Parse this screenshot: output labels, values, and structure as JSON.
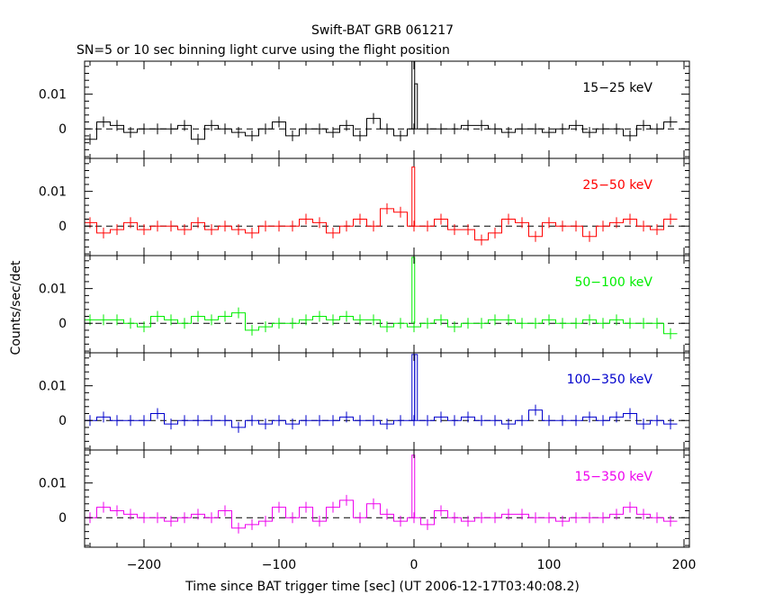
{
  "title": "Swift-BAT GRB 061217",
  "subtitle": "SN=5 or 10 sec binning light curve using the flight position",
  "xlabel": "Time since BAT trigger time [sec] (UT 2006-12-17T03:40:08.2)",
  "ylabel": "Counts/sec/det",
  "chart_data": {
    "type": "line",
    "title": "Swift-BAT GRB 061217",
    "subtitle": "SN=5 or 10 sec binning light curve using the flight position",
    "xlabel": "Time since BAT trigger time [sec] (UT 2006-12-17T03:40:08.2)",
    "ylabel": "Counts/sec/det",
    "xlim": [
      -244,
      204
    ],
    "ylim": [
      -0.0085,
      0.0195
    ],
    "x_ticks": [
      -200,
      -100,
      0,
      100,
      200
    ],
    "x_tick_labels": [
      "−200",
      "−100",
      "0",
      "100",
      "200"
    ],
    "y_ticks": [
      0,
      0.01
    ],
    "y_tick_labels": [
      "0",
      "0.01"
    ],
    "bin_width": 10,
    "panels": [
      {
        "name": "15−25 keV",
        "color": "#000000",
        "x": [
          -240,
          -230,
          -220,
          -210,
          -200,
          -190,
          -180,
          -170,
          -160,
          -150,
          -140,
          -130,
          -120,
          -110,
          -100,
          -90,
          -80,
          -70,
          -60,
          -50,
          -40,
          -30,
          -20,
          -10,
          0,
          10,
          20,
          30,
          40,
          50,
          60,
          70,
          80,
          90,
          100,
          110,
          120,
          130,
          140,
          150,
          160,
          170,
          180,
          190
        ],
        "y": [
          -0.003,
          0.002,
          0.001,
          -0.001,
          0.0,
          0.0,
          0.0,
          0.001,
          -0.003,
          0.001,
          0.0,
          -0.001,
          -0.002,
          0.0,
          0.002,
          -0.002,
          0.0,
          0.0,
          -0.001,
          0.001,
          -0.002,
          0.003,
          0.0,
          -0.002,
          0.0,
          0.0,
          0.0,
          0.0,
          0.001,
          0.001,
          0.0,
          -0.001,
          0.0,
          0.0,
          -0.001,
          0.0,
          0.001,
          -0.001,
          0.0,
          0.0,
          -0.002,
          0.001,
          0.0,
          0.002
        ],
        "spikes": [
          {
            "x": [
              -1.5,
              0.5
            ],
            "y": 0.02
          },
          {
            "x": [
              0.5,
              2.5
            ],
            "y": 0.013
          }
        ]
      },
      {
        "name": "25−50 keV",
        "color": "#ff0000",
        "x": [
          -240,
          -230,
          -220,
          -210,
          -200,
          -190,
          -180,
          -170,
          -160,
          -150,
          -140,
          -130,
          -120,
          -110,
          -100,
          -90,
          -80,
          -70,
          -60,
          -50,
          -40,
          -30,
          -20,
          -10,
          0,
          10,
          20,
          30,
          40,
          50,
          60,
          70,
          80,
          90,
          100,
          110,
          120,
          130,
          140,
          150,
          160,
          170,
          180,
          190
        ],
        "y": [
          0.001,
          -0.002,
          -0.001,
          0.001,
          -0.001,
          0.0,
          0.0,
          -0.001,
          0.001,
          -0.001,
          0.0,
          -0.001,
          -0.002,
          0.0,
          0.0,
          0.0,
          0.002,
          0.001,
          -0.002,
          0.0,
          0.002,
          0.0,
          0.005,
          0.004,
          0.0,
          0.0,
          0.002,
          -0.001,
          -0.001,
          -0.004,
          -0.002,
          0.002,
          0.001,
          -0.003,
          0.001,
          0.0,
          0.0,
          -0.003,
          0.0,
          0.001,
          0.002,
          0.0,
          -0.001,
          0.002
        ],
        "spikes": [
          {
            "x": [
              -1.5,
              0.5
            ],
            "y": 0.017
          }
        ]
      },
      {
        "name": "50−100 keV",
        "color": "#00ee00",
        "x": [
          -240,
          -230,
          -220,
          -210,
          -200,
          -190,
          -180,
          -170,
          -160,
          -150,
          -140,
          -130,
          -120,
          -110,
          -100,
          -90,
          -80,
          -70,
          -60,
          -50,
          -40,
          -30,
          -20,
          -10,
          0,
          10,
          20,
          30,
          40,
          50,
          60,
          70,
          80,
          90,
          100,
          110,
          120,
          130,
          140,
          150,
          160,
          170,
          180,
          190
        ],
        "y": [
          0.001,
          0.001,
          0.001,
          0.0,
          -0.001,
          0.002,
          0.001,
          0.0,
          0.002,
          0.001,
          0.002,
          0.003,
          -0.002,
          -0.001,
          0.0,
          0.0,
          0.001,
          0.002,
          0.001,
          0.002,
          0.001,
          0.001,
          -0.001,
          0.0,
          -0.001,
          0.0,
          0.001,
          -0.001,
          0.0,
          0.0,
          0.001,
          0.001,
          0.0,
          0.0,
          0.001,
          0.0,
          0.0,
          0.001,
          0.0,
          0.001,
          0.0,
          0.0,
          0.0,
          -0.003
        ],
        "spikes": [
          {
            "x": [
              -1.5,
              0.5
            ],
            "y": 0.019
          }
        ]
      },
      {
        "name": "100−350 keV",
        "color": "#0000cc",
        "x": [
          -240,
          -230,
          -220,
          -210,
          -200,
          -190,
          -180,
          -170,
          -160,
          -150,
          -140,
          -130,
          -120,
          -110,
          -100,
          -90,
          -80,
          -70,
          -60,
          -50,
          -40,
          -30,
          -20,
          -10,
          0,
          10,
          20,
          30,
          40,
          50,
          60,
          70,
          80,
          90,
          100,
          110,
          120,
          130,
          140,
          150,
          160,
          170,
          180,
          190
        ],
        "y": [
          0.0,
          0.001,
          0.0,
          0.0,
          0.0,
          0.002,
          -0.001,
          0.0,
          0.0,
          0.0,
          0.0,
          -0.002,
          0.0,
          -0.001,
          0.0,
          -0.001,
          0.0,
          0.0,
          0.0,
          0.001,
          0.0,
          0.0,
          -0.001,
          0.0,
          0.0,
          0.0,
          0.001,
          0.0,
          0.001,
          0.0,
          0.0,
          -0.001,
          0.0,
          0.003,
          0.0,
          0.0,
          0.0,
          0.001,
          0.0,
          0.001,
          0.002,
          -0.001,
          0.0,
          -0.001
        ],
        "spikes": [
          {
            "x": [
              -1.5,
              0.5
            ],
            "y": 0.019
          },
          {
            "x": [
              0.5,
              2.5
            ],
            "y": 0.019
          }
        ]
      },
      {
        "name": "15−350 keV",
        "color": "#ee00ee",
        "x": [
          -240,
          -230,
          -220,
          -210,
          -200,
          -190,
          -180,
          -170,
          -160,
          -150,
          -140,
          -130,
          -120,
          -110,
          -100,
          -90,
          -80,
          -70,
          -60,
          -50,
          -40,
          -30,
          -20,
          -10,
          0,
          10,
          20,
          30,
          40,
          50,
          60,
          70,
          80,
          90,
          100,
          110,
          120,
          130,
          140,
          150,
          160,
          170,
          180,
          190
        ],
        "y": [
          0.0,
          0.003,
          0.002,
          0.001,
          0.0,
          0.0,
          -0.001,
          0.0,
          0.001,
          0.0,
          0.002,
          -0.003,
          -0.002,
          -0.001,
          0.003,
          0.0,
          0.003,
          -0.001,
          0.003,
          0.005,
          0.0,
          0.004,
          0.001,
          -0.001,
          0.0,
          -0.002,
          0.002,
          0.0,
          -0.001,
          0.0,
          0.0,
          0.001,
          0.001,
          0.0,
          0.0,
          -0.001,
          0.0,
          0.0,
          0.0,
          0.001,
          0.003,
          0.001,
          0.0,
          -0.001
        ],
        "spikes": [
          {
            "x": [
              -1.5,
              0.5
            ],
            "y": 0.018
          }
        ]
      }
    ]
  }
}
